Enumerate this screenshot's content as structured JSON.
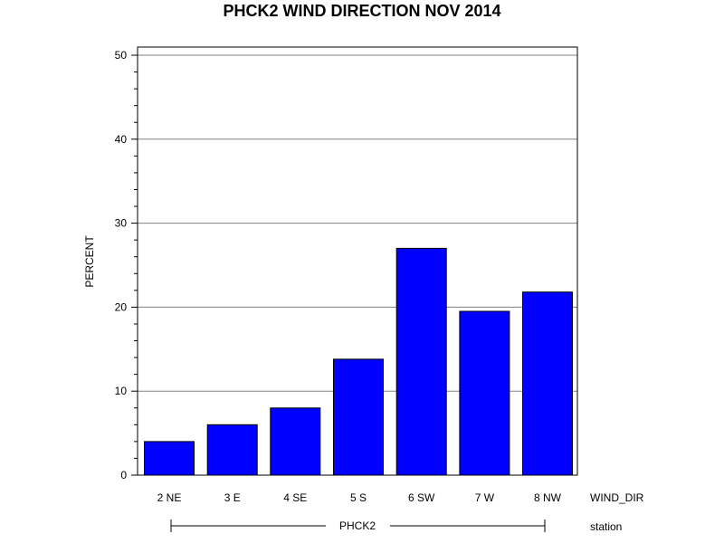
{
  "chart_data": {
    "type": "bar",
    "title": "PHCK2 WIND DIRECTION NOV 2014",
    "ylabel": "PERCENT",
    "xlabel": "WIND_DIR",
    "group_axis_label": "station",
    "group_name": "PHCK2",
    "categories": [
      "2 NE",
      "3 E",
      "4 SE",
      "5 S",
      "6 SW",
      "7 W",
      "8 NW"
    ],
    "values": [
      4.0,
      6.0,
      8.0,
      13.8,
      27.0,
      19.5,
      21.8
    ],
    "ylim": [
      0,
      50
    ],
    "yticks": [
      0,
      10,
      20,
      30,
      40,
      50
    ],
    "grid": true,
    "bar_color": "#0000ff",
    "grid_color": "#808080"
  }
}
